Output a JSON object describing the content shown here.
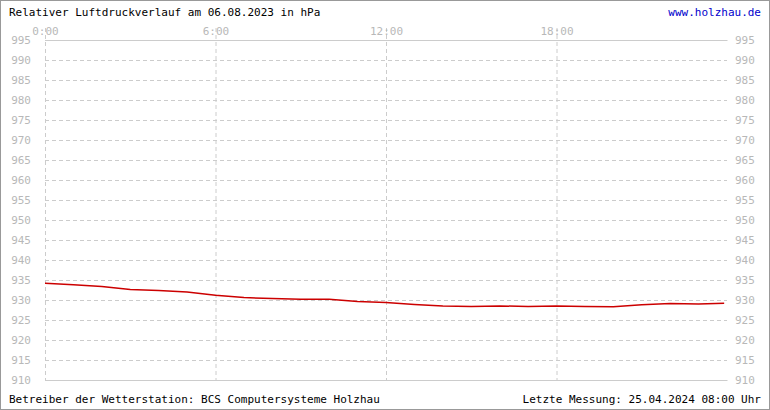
{
  "chart_data": {
    "type": "line",
    "title": "Relativer Luftdruckverlauf am 06.08.2023 in hPa",
    "subtitle": "www.holzhau.de",
    "annotations": [
      "Betreiber der Wetterstation: BCS Computersysteme Holzhau",
      "Letzte Messung: 25.04.2024 08:00 Uhr"
    ],
    "x": [
      0,
      1,
      2,
      3,
      4,
      5,
      6,
      7,
      8,
      9,
      10,
      11,
      12,
      13,
      14,
      15,
      16,
      17,
      18,
      19,
      20,
      21,
      22,
      23,
      23.9
    ],
    "values": [
      934.2,
      933.8,
      933.4,
      932.6,
      932.4,
      932.0,
      931.2,
      930.6,
      930.4,
      930.2,
      930.2,
      929.6,
      929.4,
      928.9,
      928.5,
      928.4,
      928.5,
      928.4,
      928.5,
      928.4,
      928.3,
      928.8,
      929.1,
      929.0,
      929.2
    ],
    "color": "#cc0000",
    "xlim": [
      0,
      24
    ],
    "xticks": [
      {
        "value": 0,
        "label": "0:00"
      },
      {
        "value": 6,
        "label": "6:00"
      },
      {
        "value": 12,
        "label": "12:00"
      },
      {
        "value": 18,
        "label": "18:00"
      }
    ],
    "ylim": [
      910,
      995
    ],
    "yticks": [
      910,
      915,
      920,
      925,
      930,
      935,
      940,
      945,
      950,
      955,
      960,
      965,
      970,
      975,
      980,
      985,
      990,
      995
    ],
    "grid": true
  }
}
